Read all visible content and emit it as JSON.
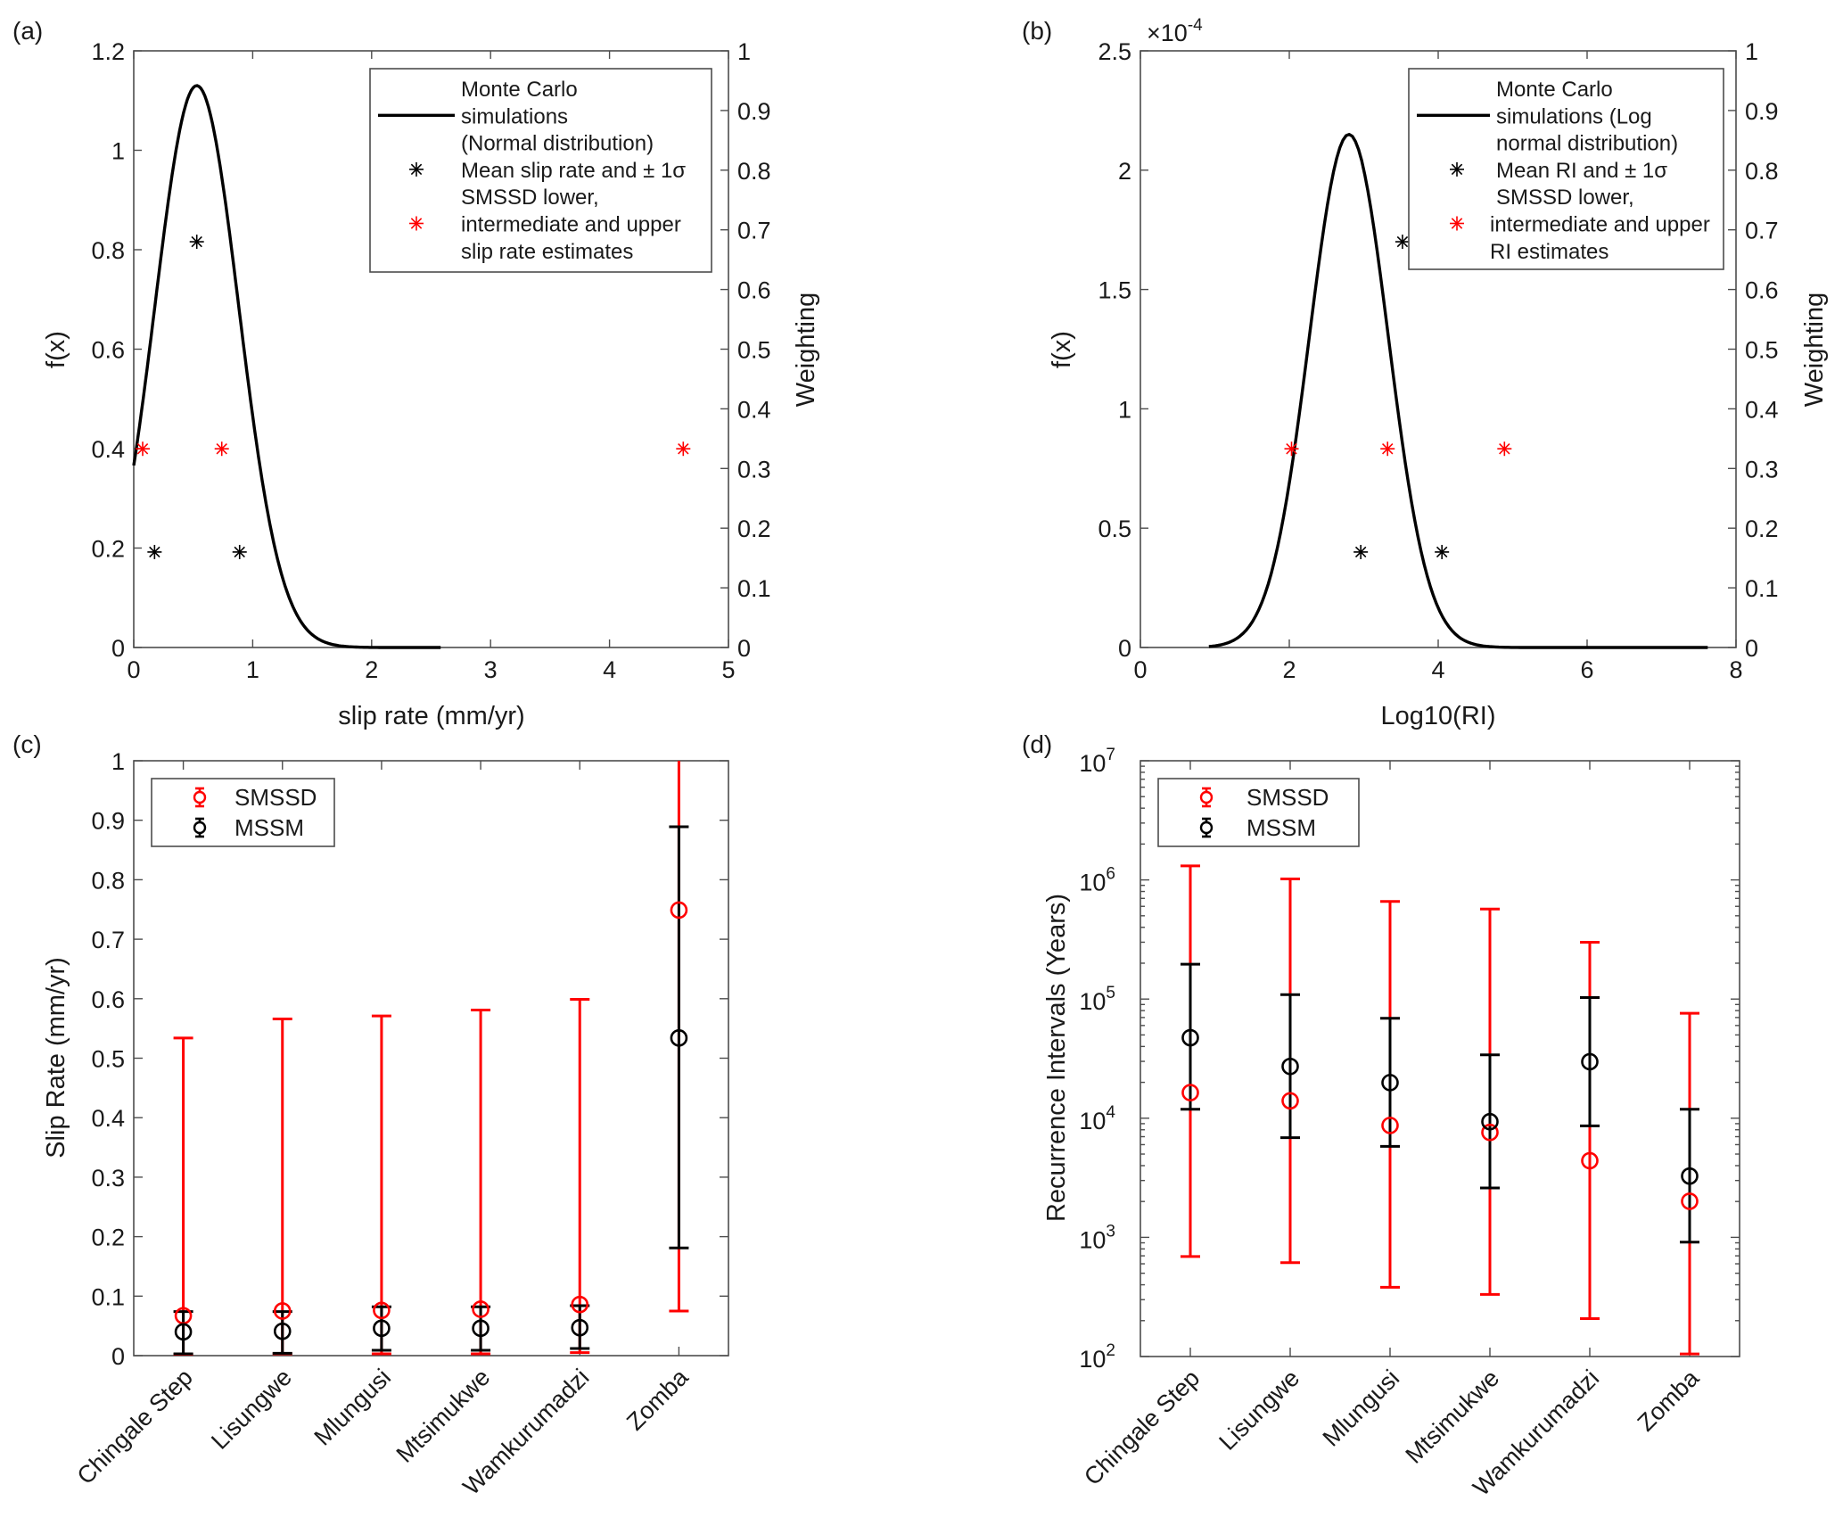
{
  "chart_data": [
    {
      "id": "a",
      "panel_label": "(a)",
      "type": "line",
      "xlabel": "slip rate (mm/yr)",
      "ylabel": "f(x)",
      "ylabel_right": "Weighting",
      "xlim": [
        0,
        5
      ],
      "ylim": [
        0,
        1.2
      ],
      "ylim_right": [
        0,
        1
      ],
      "xticks": [
        "0",
        "1",
        "2",
        "3",
        "4",
        "5"
      ],
      "xtick_values": [
        0,
        1,
        2,
        3,
        4,
        5
      ],
      "yticks": [
        "0",
        "0.2",
        "0.4",
        "0.6",
        "0.8",
        "1",
        "1.2"
      ],
      "ytick_values": [
        0,
        0.2,
        0.4,
        0.6,
        0.8,
        1.0,
        1.2
      ],
      "yticks_right": [
        "0",
        "0.1",
        "0.2",
        "0.3",
        "0.4",
        "0.5",
        "0.6",
        "0.7",
        "0.8",
        "0.9",
        "1"
      ],
      "ytick_right_values": [
        0,
        0.1,
        0.2,
        0.3,
        0.4,
        0.5,
        0.6,
        0.7,
        0.8,
        0.9,
        1.0
      ],
      "exponent_label": "",
      "grid": false,
      "legend_position": "top-right",
      "curve": {
        "name": "Monte Carlo simulations (Normal distribution)",
        "distribution": "normal",
        "mean": 0.53,
        "sd": 0.353,
        "peak": 1.13,
        "x_start": 0,
        "x_end": 2.58,
        "color": "#000000"
      },
      "series": [
        {
          "name": "Mean slip rate and ± 1σ",
          "color": "#000000",
          "axis": "right",
          "points": [
            [
              0.175,
              0.16
            ],
            [
              0.53,
              0.68
            ],
            [
              0.89,
              0.16
            ]
          ]
        },
        {
          "name": "SMSSD lower, intermediate and upper slip rate estimates",
          "color": "#ff0000",
          "axis": "right",
          "points": [
            [
              0.075,
              0.333
            ],
            [
              0.74,
              0.333
            ],
            [
              4.62,
              0.333
            ]
          ]
        }
      ],
      "legend": [
        {
          "marker": "line",
          "color": "#000000",
          "lines": [
            "Monte Carlo",
            "simulations",
            "(Normal distribution)"
          ]
        },
        {
          "marker": "star",
          "color": "#000000",
          "lines": [
            "Mean slip rate and ± 1σ"
          ]
        },
        {
          "marker": "star",
          "color": "#ff0000",
          "lines": [
            "SMSSD lower,",
            "intermediate and upper",
            "slip rate estimates"
          ]
        }
      ]
    },
    {
      "id": "b",
      "panel_label": "(b)",
      "type": "line",
      "xlabel": "Log10(RI)",
      "ylabel": "f(x)",
      "ylabel_right": "Weighting",
      "xlim": [
        0,
        8
      ],
      "ylim": [
        0,
        2.5
      ],
      "ylim_right": [
        0,
        1
      ],
      "xticks": [
        "0",
        "2",
        "4",
        "6",
        "8"
      ],
      "xtick_values": [
        0,
        2,
        4,
        6,
        8
      ],
      "yticks": [
        "0",
        "0.5",
        "1",
        "1.5",
        "2",
        "2.5"
      ],
      "ytick_values": [
        0,
        0.5,
        1.0,
        1.5,
        2.0,
        2.5
      ],
      "yticks_right": [
        "0",
        "0.1",
        "0.2",
        "0.3",
        "0.4",
        "0.5",
        "0.6",
        "0.7",
        "0.8",
        "0.9",
        "1"
      ],
      "ytick_right_values": [
        0,
        0.1,
        0.2,
        0.3,
        0.4,
        0.5,
        0.6,
        0.7,
        0.8,
        0.9,
        1.0
      ],
      "exponent_label": "×10",
      "exponent_power": "-4",
      "grid": false,
      "legend_position": "top-right",
      "curve": {
        "name": "Monte Carlo simulations (Log normal distribution)",
        "distribution": "lognormal (shown in log10 space)",
        "mean": 2.8,
        "sd": 0.53,
        "peak": 2.15,
        "x_start": 0.92,
        "x_end": 7.62,
        "color": "#000000"
      },
      "series": [
        {
          "name": "Mean RI and ± 1σ",
          "color": "#000000",
          "axis": "right",
          "points": [
            [
              2.96,
              0.16
            ],
            [
              3.52,
              0.68
            ],
            [
              4.05,
              0.16
            ]
          ]
        },
        {
          "name": "SMSSD lower, intermediate and upper RI estimates",
          "color": "#ff0000",
          "axis": "right",
          "points": [
            [
              2.03,
              0.333
            ],
            [
              3.32,
              0.333
            ],
            [
              4.89,
              0.333
            ]
          ]
        }
      ],
      "legend": [
        {
          "marker": "line",
          "color": "#000000",
          "lines": [
            "Monte Carlo",
            "simulations (Log",
            "normal distribution)"
          ]
        },
        {
          "marker": "star",
          "color": "#000000",
          "lines": [
            "Mean RI and ± 1σ"
          ]
        },
        {
          "marker": "star",
          "color": "#ff0000",
          "lines": [
            "SMSSD lower,",
            "intermediate and upper",
            "RI estimates"
          ]
        }
      ]
    },
    {
      "id": "c",
      "panel_label": "(c)",
      "type": "scatter",
      "subtype": "errorbar",
      "xlabel": "",
      "ylabel": "Slip Rate (mm/yr)",
      "yscale": "linear",
      "ylim": [
        0,
        1
      ],
      "yticks": [
        "0",
        "0.1",
        "0.2",
        "0.3",
        "0.4",
        "0.5",
        "0.6",
        "0.7",
        "0.8",
        "0.9",
        "1"
      ],
      "ytick_values": [
        0,
        0.1,
        0.2,
        0.3,
        0.4,
        0.5,
        0.6,
        0.7,
        0.8,
        0.9,
        1.0
      ],
      "categories": [
        "Chingale Step",
        "Lisungwe",
        "Mlungusi",
        "Mtsimukwe",
        "Wamkurumadzi",
        "Zomba"
      ],
      "grid": false,
      "legend_position": "top-left",
      "series": [
        {
          "name": "SMSSD",
          "color": "#ff0000",
          "values": [
            0.067,
            0.075,
            0.076,
            0.078,
            0.086,
            0.749
          ],
          "lower": [
            0.002,
            0.003,
            0.003,
            0.003,
            0.005,
            0.075
          ],
          "upper": [
            0.534,
            0.566,
            0.571,
            0.581,
            0.599,
            1.05
          ]
        },
        {
          "name": "MSSM",
          "color": "#000000",
          "values": [
            0.04,
            0.041,
            0.046,
            0.046,
            0.047,
            0.534
          ],
          "lower": [
            0.003,
            0.004,
            0.009,
            0.009,
            0.012,
            0.181
          ],
          "upper": [
            0.074,
            0.074,
            0.082,
            0.082,
            0.084,
            0.889
          ]
        }
      ]
    },
    {
      "id": "d",
      "panel_label": "(d)",
      "type": "scatter",
      "subtype": "errorbar",
      "xlabel": "",
      "ylabel": "Recurrence Intervals (Years)",
      "yscale": "log",
      "ylim": [
        100,
        10000000
      ],
      "yticks": [
        "10",
        "10",
        "10",
        "10",
        "10",
        "10"
      ],
      "ytick_exponents": [
        "2",
        "3",
        "4",
        "5",
        "6",
        "7"
      ],
      "ytick_values": [
        100,
        1000,
        10000,
        100000,
        1000000,
        10000000
      ],
      "categories": [
        "Chingale Step",
        "Lisungwe",
        "Mlungusi",
        "Mtsimukwe",
        "Wamkurumadzi",
        "Zomba"
      ],
      "grid": false,
      "legend_position": "top-left",
      "series": [
        {
          "name": "SMSSD",
          "color": "#ff0000",
          "values": [
            16400,
            14000,
            8700,
            7600,
            4400,
            2010
          ],
          "lower": [
            690,
            613,
            381,
            332,
            208,
            105
          ],
          "upper": [
            1310000,
            1020000,
            660000,
            570000,
            300000,
            76000
          ]
        },
        {
          "name": "MSSM",
          "color": "#000000",
          "values": [
            47400,
            27200,
            19900,
            9350,
            29800,
            3270
          ],
          "lower": [
            11900,
            6870,
            5800,
            2600,
            8630,
            912
          ],
          "upper": [
            196000,
            109000,
            69000,
            34000,
            103000,
            11900
          ]
        }
      ]
    }
  ]
}
